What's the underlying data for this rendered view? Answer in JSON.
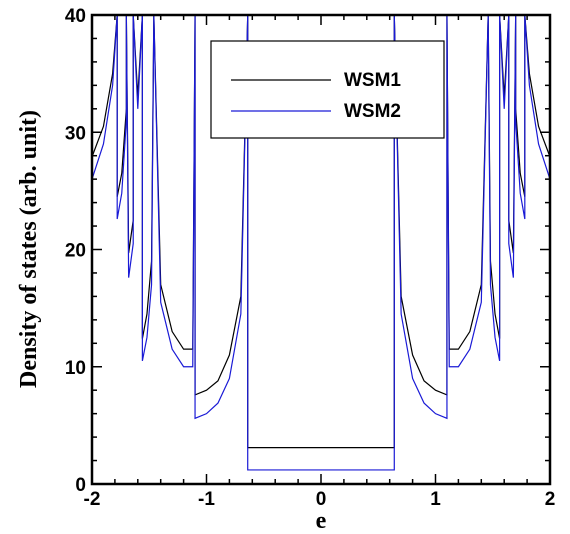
{
  "chart_data": {
    "type": "line",
    "xlabel": "e",
    "ylabel": "Density of states (arb. unit)",
    "xlim": [
      -2,
      2
    ],
    "ylim": [
      0,
      40
    ],
    "x_ticks": [
      "-2",
      "-1",
      "0",
      "1",
      "2"
    ],
    "y_ticks": [
      "0",
      "10",
      "20",
      "30",
      "40"
    ],
    "x_tick_values": [
      -2,
      -1,
      0,
      1,
      2
    ],
    "y_tick_values": [
      0,
      10,
      20,
      30,
      40
    ],
    "legend_position": "top-center",
    "grid": false,
    "series": [
      {
        "name": "WSM1",
        "color": "#000000",
        "x": [
          -2.0,
          -1.9,
          -1.82,
          -1.78,
          -1.78,
          -1.74,
          -1.7,
          -1.7,
          -1.68,
          -1.64,
          -1.64,
          -1.6,
          -1.56,
          -1.56,
          -1.52,
          -1.48,
          -1.46,
          -1.46,
          -1.4,
          -1.3,
          -1.2,
          -1.12,
          -1.1,
          -1.1,
          -1.0,
          -0.9,
          -0.8,
          -0.7,
          -0.64,
          -0.64,
          0.64,
          0.64,
          0.7,
          0.8,
          0.9,
          1.0,
          1.1,
          1.1,
          1.12,
          1.2,
          1.3,
          1.4,
          1.46,
          1.46,
          1.48,
          1.52,
          1.56,
          1.56,
          1.6,
          1.64,
          1.64,
          1.68,
          1.7,
          1.7,
          1.74,
          1.78,
          1.78,
          1.82,
          1.9,
          2.0
        ],
        "values": [
          27.9,
          30.5,
          35.0,
          40.0,
          24.5,
          26.5,
          32.0,
          40.0,
          19.7,
          22.5,
          40.0,
          33.0,
          40.0,
          12.4,
          14.5,
          19.0,
          40.0,
          40.0,
          17.0,
          13.0,
          11.5,
          11.5,
          40.0,
          7.6,
          8.0,
          8.8,
          11.0,
          16.0,
          40.0,
          3.1,
          3.1,
          40.0,
          16.0,
          11.0,
          8.8,
          8.0,
          7.6,
          40.0,
          11.5,
          11.5,
          13.0,
          17.0,
          40.0,
          40.0,
          19.0,
          14.5,
          12.4,
          40.0,
          33.0,
          40.0,
          22.5,
          19.7,
          40.0,
          32.0,
          26.5,
          24.5,
          40.0,
          35.0,
          30.5,
          27.9
        ]
      },
      {
        "name": "WSM2",
        "color": "#1a1ad6",
        "x": [
          -2.0,
          -1.9,
          -1.82,
          -1.78,
          -1.78,
          -1.74,
          -1.7,
          -1.7,
          -1.68,
          -1.64,
          -1.64,
          -1.6,
          -1.56,
          -1.56,
          -1.52,
          -1.48,
          -1.46,
          -1.46,
          -1.4,
          -1.3,
          -1.2,
          -1.12,
          -1.1,
          -1.1,
          -1.0,
          -0.9,
          -0.8,
          -0.7,
          -0.64,
          -0.64,
          0.64,
          0.64,
          0.7,
          0.8,
          0.9,
          1.0,
          1.1,
          1.1,
          1.12,
          1.2,
          1.3,
          1.4,
          1.46,
          1.46,
          1.48,
          1.52,
          1.56,
          1.56,
          1.6,
          1.64,
          1.64,
          1.68,
          1.7,
          1.7,
          1.74,
          1.78,
          1.78,
          1.82,
          1.9,
          2.0
        ],
        "values": [
          26.0,
          29.0,
          34.0,
          40.0,
          22.6,
          24.8,
          31.0,
          40.0,
          17.6,
          20.5,
          40.0,
          32.0,
          40.0,
          10.5,
          12.5,
          17.0,
          40.0,
          40.0,
          15.5,
          11.5,
          10.0,
          10.0,
          40.0,
          5.6,
          6.0,
          6.9,
          9.0,
          14.5,
          40.0,
          1.2,
          1.2,
          40.0,
          14.5,
          9.0,
          6.9,
          6.0,
          5.6,
          40.0,
          10.0,
          10.0,
          11.5,
          15.5,
          40.0,
          40.0,
          17.0,
          12.5,
          10.5,
          40.0,
          32.0,
          40.0,
          20.5,
          17.6,
          40.0,
          31.0,
          24.8,
          22.6,
          40.0,
          34.0,
          29.0,
          26.0
        ]
      }
    ]
  }
}
